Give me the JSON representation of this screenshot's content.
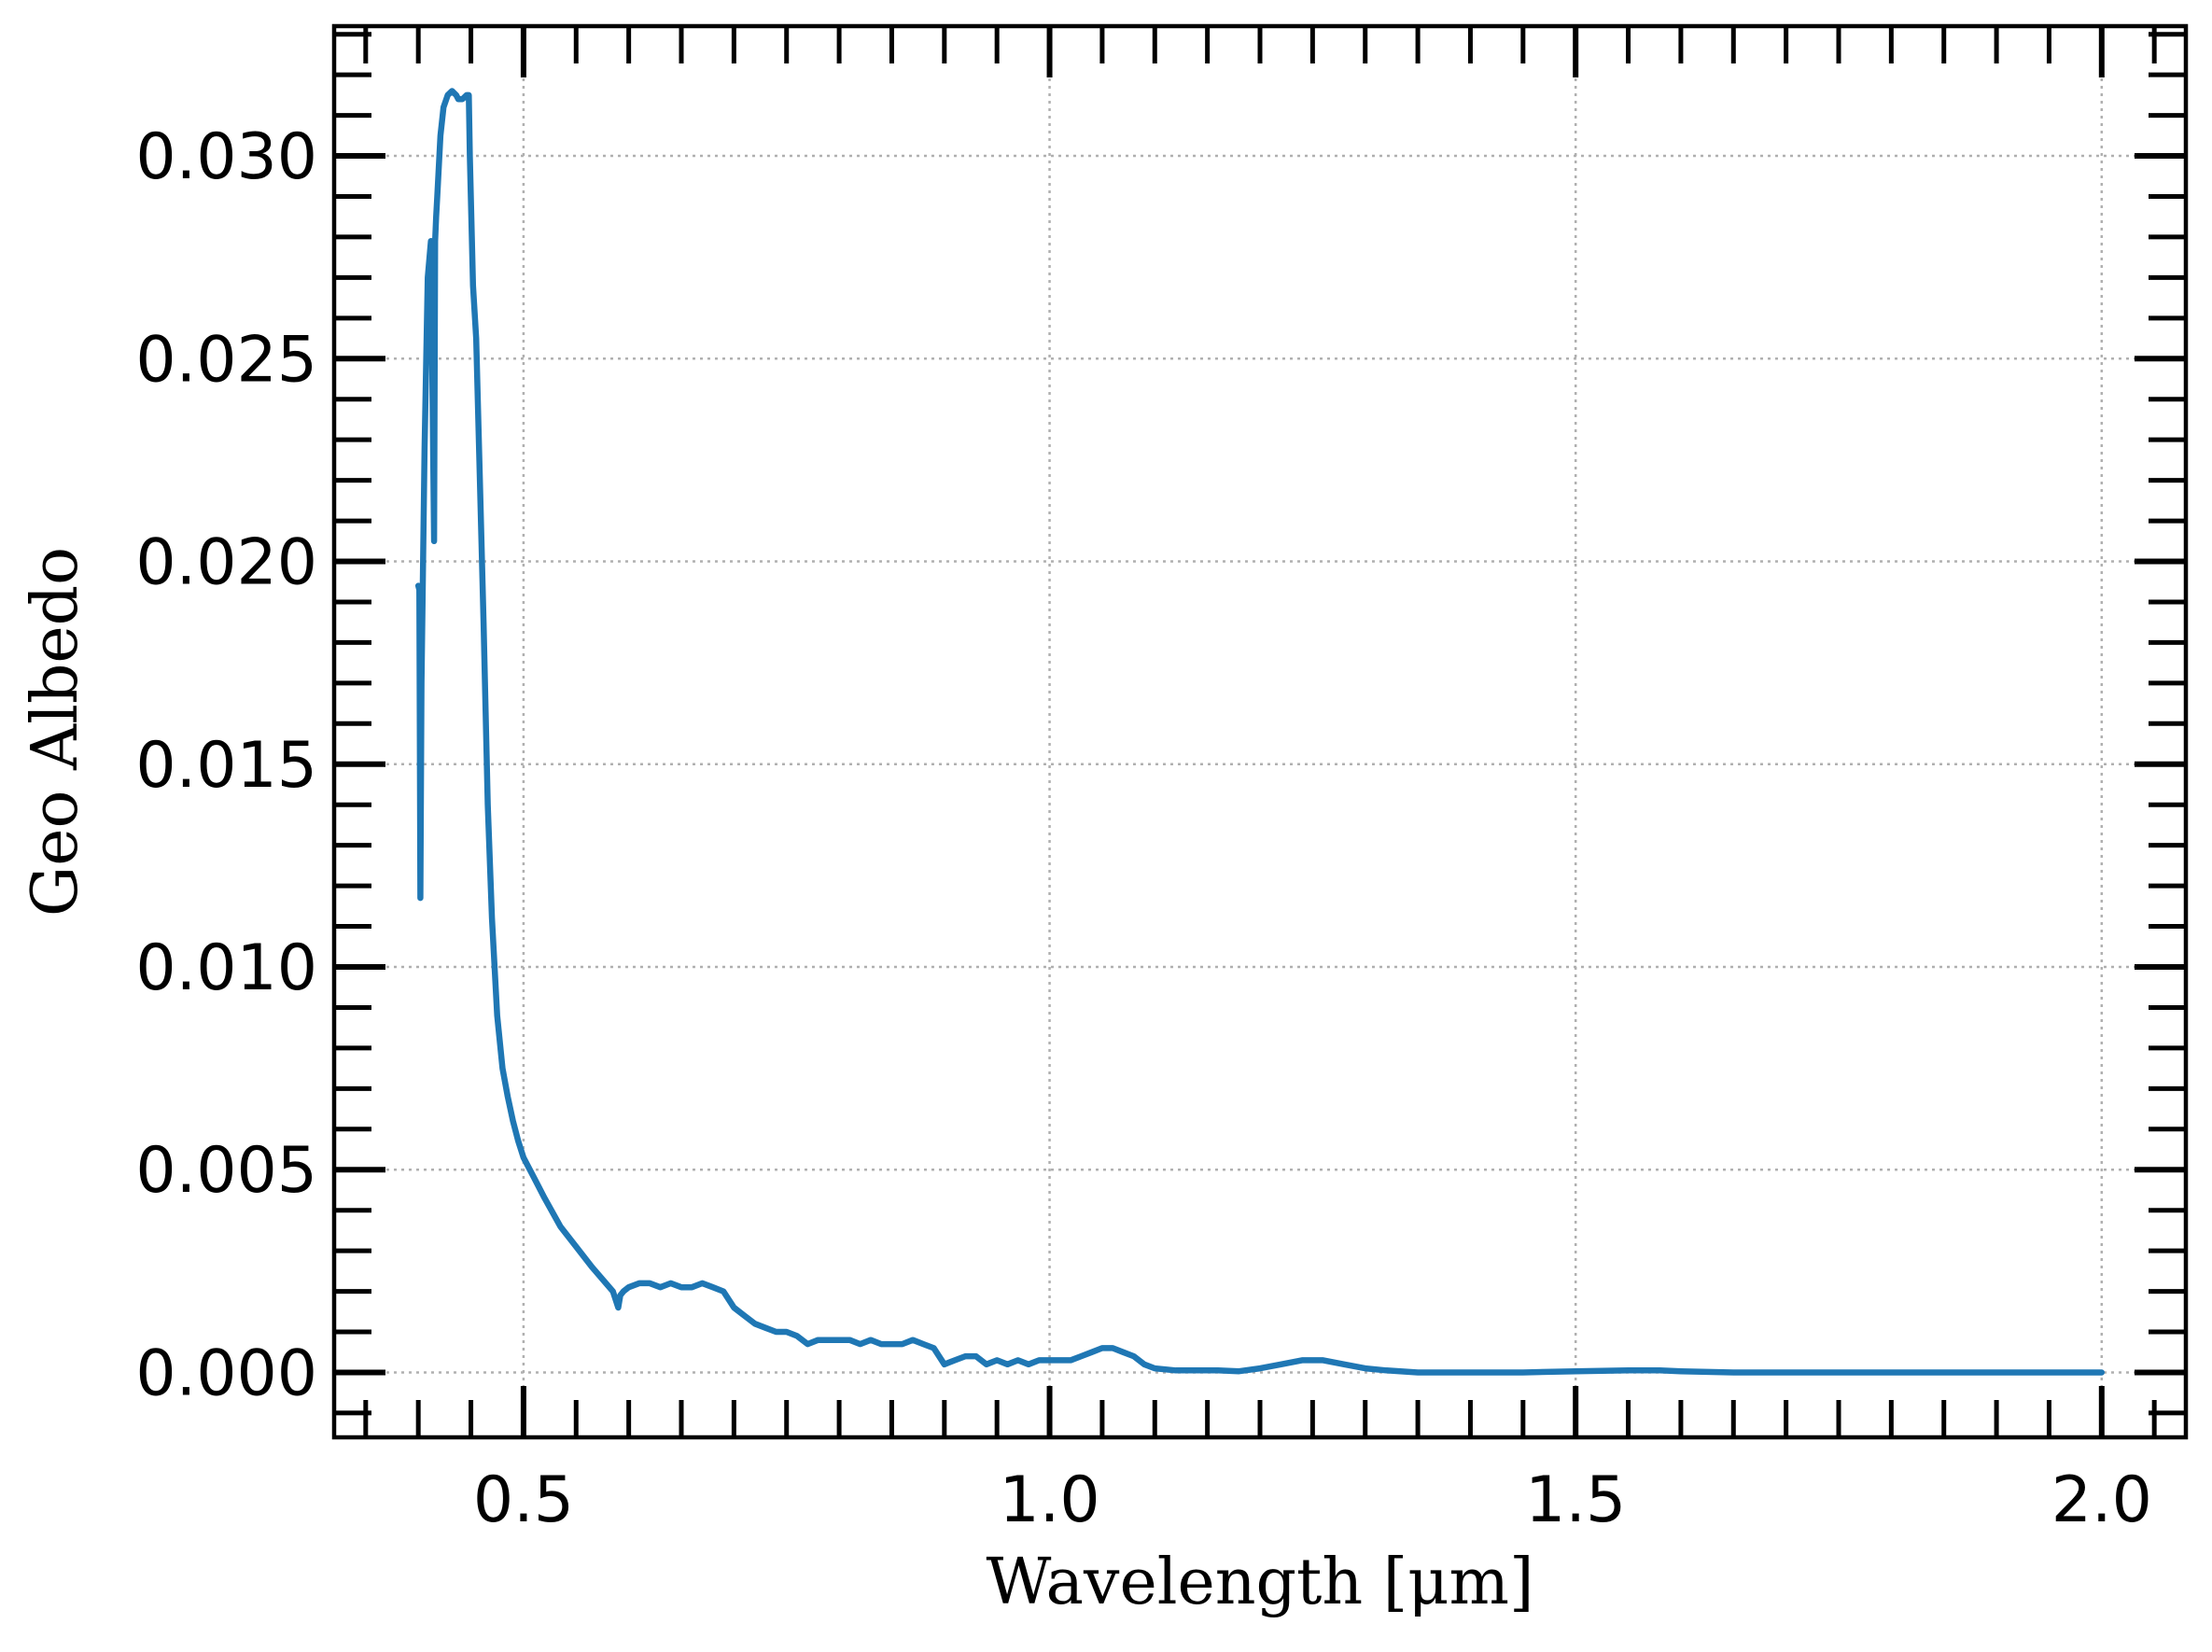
{
  "chart_data": {
    "type": "line",
    "xlabel": "Wavelength [μm]",
    "ylabel": "Geo Albedo",
    "xlim": [
      0.32,
      2.08
    ],
    "ylim": [
      -0.0016,
      0.0332
    ],
    "x_ticks": [
      0.5,
      1.0,
      1.5,
      2.0
    ],
    "x_tick_labels": [
      "0.5",
      "1.0",
      "1.5",
      "2.0"
    ],
    "x_minor_step": 0.05,
    "y_ticks": [
      0.0,
      0.005,
      0.01,
      0.015,
      0.02,
      0.025,
      0.03
    ],
    "y_tick_labels": [
      "0.000",
      "0.005",
      "0.010",
      "0.015",
      "0.020",
      "0.025",
      "0.030"
    ],
    "y_minor_step": 0.001,
    "grid": true,
    "legend": "none",
    "colors": {
      "line": "#1f77b4",
      "grid": "#b0b0b0",
      "frame": "#000000"
    },
    "series": [
      {
        "x": [
          0.4,
          0.401,
          0.402,
          0.403,
          0.406,
          0.409,
          0.412,
          0.415,
          0.416,
          0.417,
          0.418,
          0.421,
          0.424,
          0.428,
          0.432,
          0.436,
          0.438,
          0.442,
          0.446,
          0.448,
          0.449,
          0.452,
          0.455,
          0.458,
          0.462,
          0.466,
          0.47,
          0.475,
          0.48,
          0.485,
          0.49,
          0.495,
          0.5,
          0.51,
          0.52,
          0.535,
          0.55,
          0.565,
          0.575,
          0.585,
          0.59,
          0.592,
          0.595,
          0.6,
          0.61,
          0.62,
          0.63,
          0.64,
          0.65,
          0.66,
          0.67,
          0.68,
          0.69,
          0.7,
          0.71,
          0.72,
          0.73,
          0.74,
          0.75,
          0.76,
          0.77,
          0.78,
          0.79,
          0.8,
          0.81,
          0.82,
          0.83,
          0.84,
          0.85,
          0.86,
          0.87,
          0.88,
          0.89,
          0.9,
          0.91,
          0.92,
          0.93,
          0.94,
          0.95,
          0.96,
          0.97,
          0.98,
          0.99,
          1.0,
          1.01,
          1.02,
          1.03,
          1.04,
          1.05,
          1.06,
          1.07,
          1.08,
          1.09,
          1.1,
          1.12,
          1.14,
          1.16,
          1.18,
          1.2,
          1.22,
          1.24,
          1.26,
          1.28,
          1.3,
          1.32,
          1.35,
          1.4,
          1.45,
          1.5,
          1.55,
          1.58,
          1.6,
          1.65,
          1.7,
          1.75,
          1.8,
          1.85,
          1.9,
          1.95,
          2.0
        ],
        "y": [
          0.0194,
          0.0193,
          0.0117,
          0.017,
          0.0228,
          0.027,
          0.0279,
          0.0205,
          0.0279,
          0.0285,
          0.029,
          0.0305,
          0.0312,
          0.0315,
          0.0316,
          0.0315,
          0.0314,
          0.0314,
          0.0315,
          0.0315,
          0.03,
          0.0268,
          0.0255,
          0.0225,
          0.0185,
          0.014,
          0.0112,
          0.0088,
          0.0075,
          0.0068,
          0.0062,
          0.0057,
          0.0053,
          0.0048,
          0.0043,
          0.0036,
          0.0031,
          0.0026,
          0.0023,
          0.002,
          0.0016,
          0.0019,
          0.002,
          0.0021,
          0.0022,
          0.0022,
          0.0021,
          0.0022,
          0.0021,
          0.0021,
          0.0022,
          0.0021,
          0.002,
          0.0016,
          0.0014,
          0.0012,
          0.0011,
          0.001,
          0.001,
          0.0009,
          0.0007,
          0.0008,
          0.0008,
          0.0008,
          0.0008,
          0.0007,
          0.0008,
          0.0007,
          0.0007,
          0.0007,
          0.0008,
          0.0007,
          0.0006,
          0.0002,
          0.0003,
          0.0004,
          0.0004,
          0.0002,
          0.0003,
          0.0002,
          0.0003,
          0.0002,
          0.0003,
          0.0003,
          0.0003,
          0.0003,
          0.0004,
          0.0005,
          0.0006,
          0.0006,
          0.0005,
          0.0004,
          0.0002,
          0.0001,
          5e-05,
          5e-05,
          5e-05,
          3e-05,
          0.0001,
          0.0002,
          0.0003,
          0.0003,
          0.0002,
          0.0001,
          5e-05,
          0.0,
          0.0,
          0.0,
          3e-05,
          5e-05,
          5e-05,
          3e-05,
          0.0,
          0.0,
          0.0,
          0.0,
          0.0,
          0.0,
          0.0,
          0.0
        ]
      }
    ]
  }
}
